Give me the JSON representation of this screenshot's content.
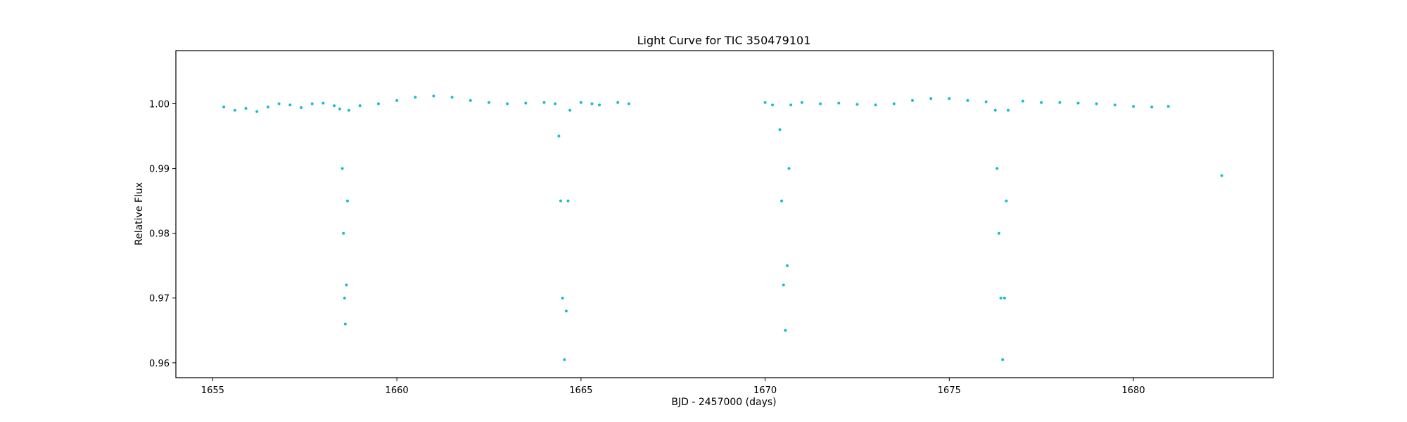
{
  "chart_data": {
    "type": "scatter",
    "title": "Light Curve for TIC 350479101",
    "xlabel": "BJD - 2457000 (days)",
    "ylabel": "Relative Flux",
    "xlim": [
      1654.0,
      1683.8
    ],
    "ylim": [
      0.9577,
      1.0082
    ],
    "xticks": [
      1655,
      1660,
      1665,
      1670,
      1675,
      1680
    ],
    "xtick_labels": [
      "1655",
      "1660",
      "1665",
      "1670",
      "1675",
      "1680"
    ],
    "yticks": [
      0.96,
      0.97,
      0.98,
      0.99,
      1.0
    ],
    "ytick_labels": [
      "0.96",
      "0.97",
      "0.98",
      "0.99",
      "1.00"
    ],
    "grid": false,
    "marker_color": "#17becf",
    "series": [
      {
        "points": [
          [
            1655.3,
            0.9995
          ],
          [
            1655.6,
            0.999
          ],
          [
            1655.9,
            0.9993
          ],
          [
            1656.2,
            0.9988
          ],
          [
            1656.5,
            0.9995
          ],
          [
            1656.8,
            1.0
          ],
          [
            1657.1,
            0.9998
          ],
          [
            1657.4,
            0.9994
          ],
          [
            1657.7,
            1.0
          ],
          [
            1658.0,
            1.0001
          ],
          [
            1658.3,
            0.9997
          ],
          [
            1658.45,
            0.9992
          ],
          [
            1658.52,
            0.99
          ],
          [
            1658.55,
            0.98
          ],
          [
            1658.58,
            0.97
          ],
          [
            1658.6,
            0.966
          ],
          [
            1658.63,
            0.972
          ],
          [
            1658.66,
            0.985
          ],
          [
            1658.7,
            0.999
          ],
          [
            1659.0,
            0.9997
          ],
          [
            1659.5,
            1.0
          ],
          [
            1660.0,
            1.0005
          ],
          [
            1660.5,
            1.001
          ],
          [
            1661.0,
            1.0012
          ],
          [
            1661.5,
            1.001
          ],
          [
            1662.0,
            1.0005
          ],
          [
            1662.5,
            1.0002
          ],
          [
            1663.0,
            1.0
          ],
          [
            1663.5,
            1.0001
          ],
          [
            1664.0,
            1.0002
          ],
          [
            1664.3,
            1.0
          ],
          [
            1664.4,
            0.995
          ],
          [
            1664.45,
            0.985
          ],
          [
            1664.5,
            0.97
          ],
          [
            1664.55,
            0.9605
          ],
          [
            1664.6,
            0.968
          ],
          [
            1664.65,
            0.985
          ],
          [
            1664.7,
            0.999
          ],
          [
            1665.0,
            1.0002
          ],
          [
            1665.3,
            1.0
          ],
          [
            1665.5,
            0.9998
          ],
          [
            1666.0,
            1.0002
          ],
          [
            1666.3,
            1.0
          ],
          [
            1670.0,
            1.0002
          ],
          [
            1670.2,
            0.9998
          ],
          [
            1670.4,
            0.996
          ],
          [
            1670.45,
            0.985
          ],
          [
            1670.5,
            0.972
          ],
          [
            1670.55,
            0.965
          ],
          [
            1670.6,
            0.975
          ],
          [
            1670.65,
            0.99
          ],
          [
            1670.7,
            0.9998
          ],
          [
            1671.0,
            1.0002
          ],
          [
            1671.5,
            1.0
          ],
          [
            1672.0,
            1.0001
          ],
          [
            1672.5,
            0.9999
          ],
          [
            1673.0,
            0.9998
          ],
          [
            1673.5,
            1.0
          ],
          [
            1674.0,
            1.0005
          ],
          [
            1674.5,
            1.0008
          ],
          [
            1675.0,
            1.0008
          ],
          [
            1675.5,
            1.0005
          ],
          [
            1676.0,
            1.0003
          ],
          [
            1676.25,
            0.999
          ],
          [
            1676.3,
            0.99
          ],
          [
            1676.35,
            0.98
          ],
          [
            1676.4,
            0.97
          ],
          [
            1676.45,
            0.9605
          ],
          [
            1676.5,
            0.97
          ],
          [
            1676.55,
            0.985
          ],
          [
            1676.6,
            0.999
          ],
          [
            1677.0,
            1.0004
          ],
          [
            1677.5,
            1.0002
          ],
          [
            1678.0,
            1.0002
          ],
          [
            1678.5,
            1.0001
          ],
          [
            1679.0,
            1.0
          ],
          [
            1679.5,
            0.9998
          ],
          [
            1680.0,
            0.9996
          ],
          [
            1680.5,
            0.9995
          ],
          [
            1680.95,
            0.9996
          ],
          [
            1682.4,
            0.9889
          ]
        ]
      }
    ]
  }
}
